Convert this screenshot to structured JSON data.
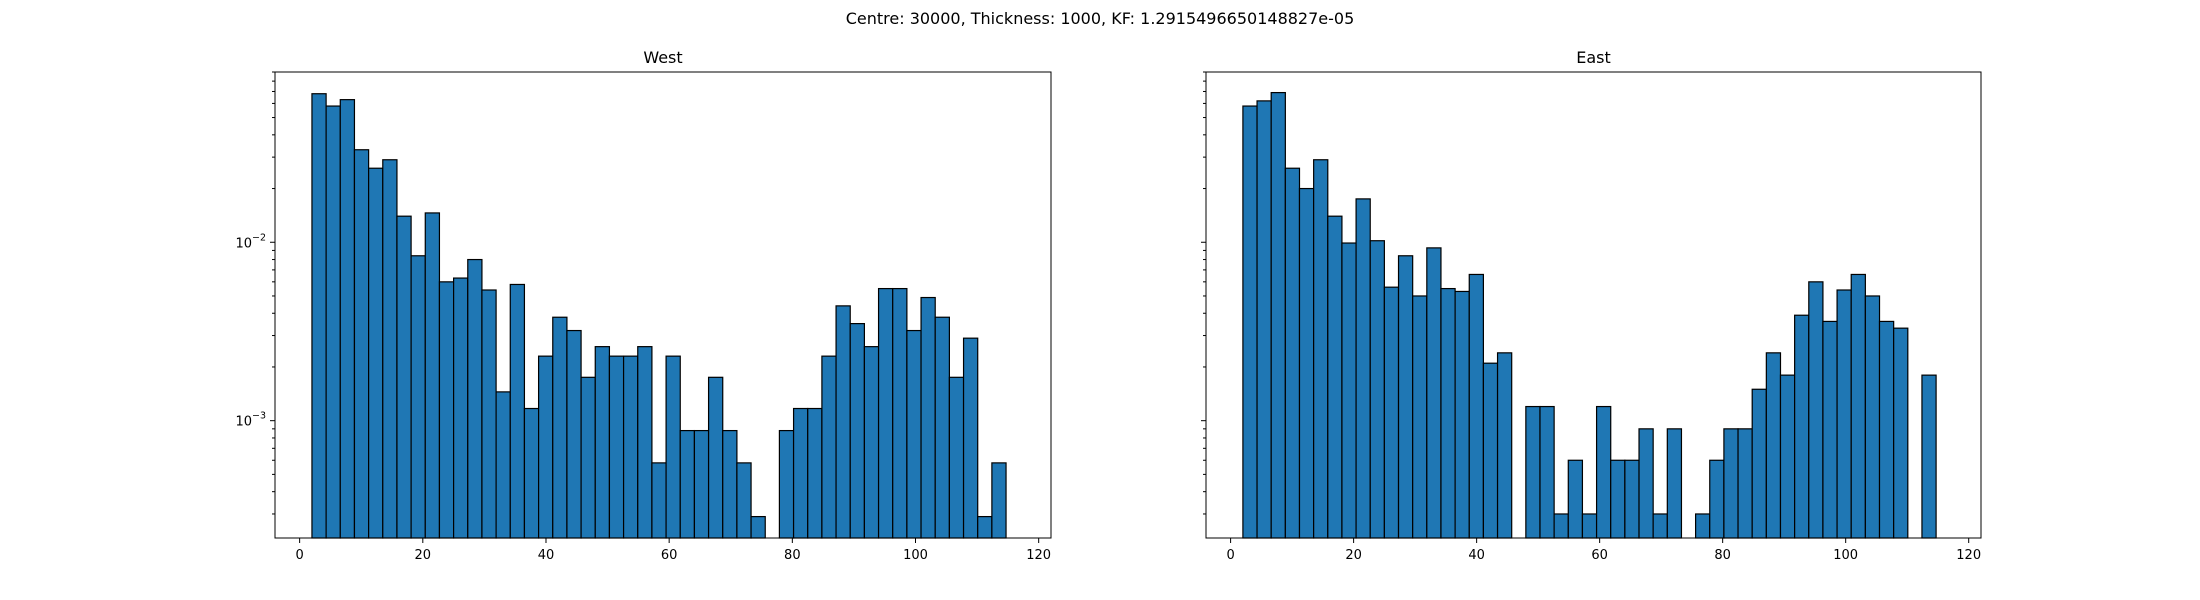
{
  "figure": {
    "suptitle": "Centre: 30000, Thickness: 1000, KF: 1.2915496650148827e-05"
  },
  "chart_data": [
    {
      "type": "bar",
      "title": "West",
      "xlabel": "",
      "ylabel": "",
      "xlim": [
        -4,
        122
      ],
      "ylim": [
        0.00022,
        0.09
      ],
      "yscale": "log",
      "grid": false,
      "bar_color": "#1f77b4",
      "edge_color": "#000000",
      "x_ticks": [
        0,
        20,
        40,
        60,
        80,
        100,
        120
      ],
      "y_ticks": [
        {
          "base": "10",
          "exp": "−2",
          "value": 0.01
        },
        {
          "base": "10",
          "exp": "−3",
          "value": 0.001
        }
      ],
      "bin_edges": [
        2,
        4.3,
        6.6,
        8.9,
        11.2,
        13.5,
        15.8,
        18.1,
        20.4,
        22.7,
        25,
        27.3,
        29.6,
        31.9,
        34.2,
        36.5,
        38.8,
        41.1,
        43.4,
        45.7,
        48,
        50.3,
        52.6,
        54.9,
        57.2,
        59.5,
        61.8,
        64.1,
        66.4,
        68.7,
        71,
        73.3,
        75.6,
        77.9,
        80.2,
        82.5,
        84.8,
        87.1,
        89.4,
        91.7,
        94,
        96.3,
        98.6,
        100.9,
        103.2,
        105.5,
        107.8,
        110.1,
        112.4,
        114.7,
        117
      ],
      "values": [
        0.068,
        0.058,
        0.063,
        0.033,
        0.026,
        0.029,
        0.014,
        0.0084,
        0.0146,
        0.006,
        0.0063,
        0.008,
        0.0054,
        0.00145,
        0.0058,
        0.00117,
        0.0023,
        0.0038,
        0.0032,
        0.00175,
        0.0026,
        0.0023,
        0.0023,
        0.0026,
        0.00058,
        0.0023,
        0.00088,
        0.00088,
        0.00175,
        0.00088,
        0.00058,
        0.00029,
        0,
        0.00088,
        0.00117,
        0.00117,
        0.0023,
        0.0044,
        0.0035,
        0.0026,
        0.0055,
        0.0055,
        0.0032,
        0.0049,
        0.0038,
        0.00175,
        0.0029,
        0.00029,
        0.00058,
        0
      ]
    },
    {
      "type": "bar",
      "title": "East",
      "xlabel": "",
      "ylabel": "",
      "xlim": [
        -4,
        122
      ],
      "ylim": [
        0.00022,
        0.09
      ],
      "yscale": "log",
      "grid": false,
      "bar_color": "#1f77b4",
      "edge_color": "#000000",
      "x_ticks": [
        0,
        20,
        40,
        60,
        80,
        100,
        120
      ],
      "y_ticks": [],
      "bin_edges": [
        2,
        4.3,
        6.6,
        8.9,
        11.2,
        13.5,
        15.8,
        18.1,
        20.4,
        22.7,
        25,
        27.3,
        29.6,
        31.9,
        34.2,
        36.5,
        38.8,
        41.1,
        43.4,
        45.7,
        48,
        50.3,
        52.6,
        54.9,
        57.2,
        59.5,
        61.8,
        64.1,
        66.4,
        68.7,
        71,
        73.3,
        75.6,
        77.9,
        80.2,
        82.5,
        84.8,
        87.1,
        89.4,
        91.7,
        94,
        96.3,
        98.6,
        100.9,
        103.2,
        105.5,
        107.8,
        110.1,
        112.4,
        114.7,
        117
      ],
      "values": [
        0.058,
        0.062,
        0.069,
        0.026,
        0.02,
        0.029,
        0.014,
        0.0099,
        0.0175,
        0.0102,
        0.0056,
        0.0084,
        0.005,
        0.0093,
        0.0055,
        0.0053,
        0.0066,
        0.0021,
        0.0024,
        0,
        0.0012,
        0.0012,
        0.0003,
        0.0006,
        0.0003,
        0.0012,
        0.0006,
        0.0006,
        0.0009,
        0.0003,
        0.0009,
        0,
        0.0003,
        0.0006,
        0.0009,
        0.0009,
        0.0015,
        0.0024,
        0.0018,
        0.0039,
        0.006,
        0.0036,
        0.0054,
        0.0066,
        0.005,
        0.0036,
        0.0033,
        0,
        0.0018,
        0
      ]
    }
  ]
}
